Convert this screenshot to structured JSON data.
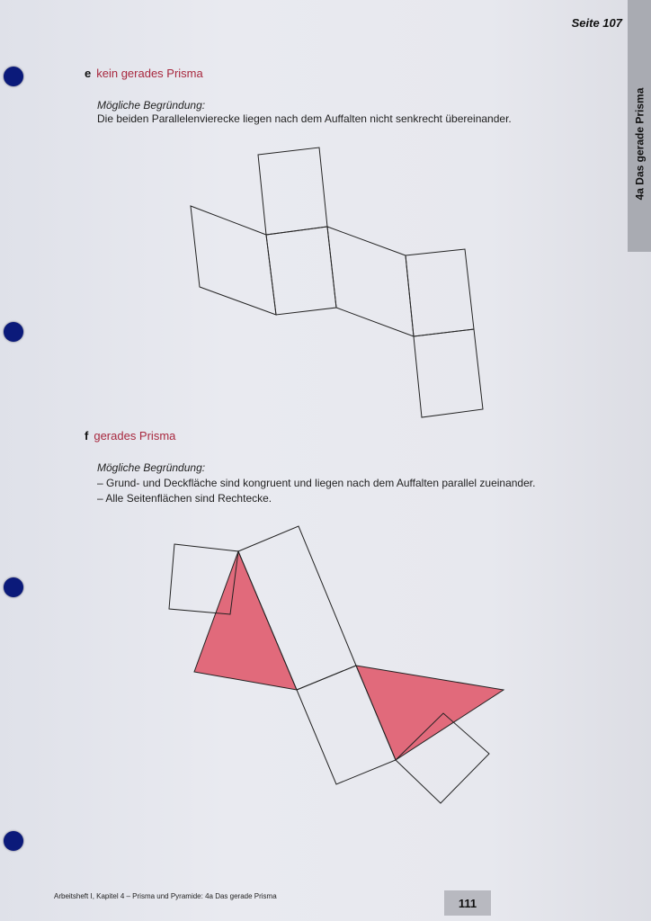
{
  "header": {
    "page_ref": "Seite 107",
    "side_tab": "4a Das gerade Prisma"
  },
  "task_e": {
    "letter": "e",
    "answer": "kein gerades Prisma",
    "reason_title": "Mögliche Begründung:",
    "reason_lines": [
      "Die beiden Parallelenvierecke liegen nach dem Auffalten nicht senkrecht übereinander."
    ]
  },
  "task_f": {
    "letter": "f",
    "answer": "gerades Prisma",
    "reason_title": "Mögliche Begründung:",
    "reason_lines": [
      "– Grund- und Deckfläche sind kongruent und liegen nach dem Auffalten parallel zueinander.",
      "– Alle Seitenflächen sind Rechtecke."
    ]
  },
  "footer": {
    "text": "Arbeitsheft I, Kapitel 4 – Prisma und Pyramide: 4a Das gerade Prisma",
    "page_number": "111"
  },
  "colors": {
    "answer": "#a8283e",
    "triangle_fill": "#e16a7b",
    "hole": "#0b1a7a",
    "tab": "#a9abb2"
  }
}
